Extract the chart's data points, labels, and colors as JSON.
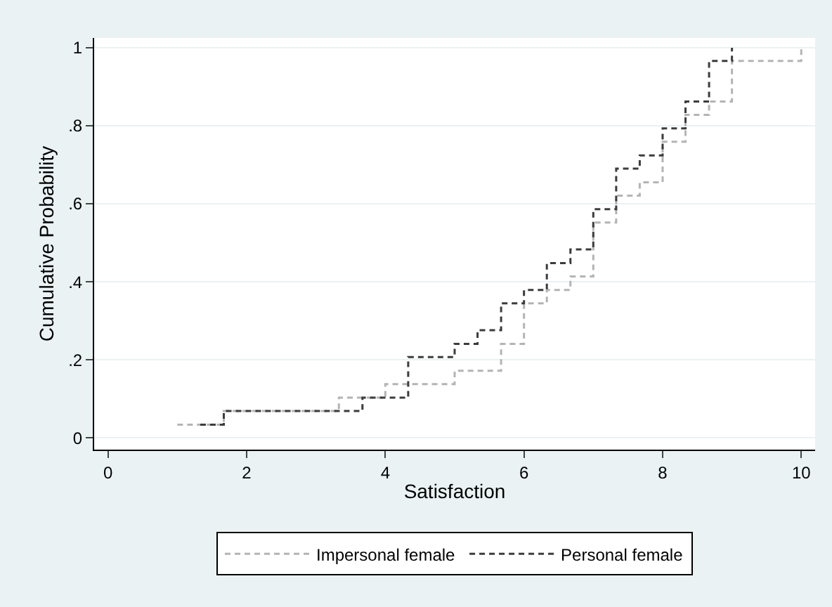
{
  "chart_data": {
    "type": "step",
    "xlabel": "Satisfaction",
    "ylabel": "Cumulative Probability",
    "xlim": [
      -0.2,
      10.2
    ],
    "xticks": [
      0,
      2,
      4,
      6,
      8,
      10
    ],
    "ylim": [
      -0.03,
      1.025
    ],
    "yticks": [
      0,
      {
        "value": 0.2,
        "label": ".2"
      },
      {
        "value": 0.4,
        "label": ".4"
      },
      {
        "value": 0.6,
        "label": ".6"
      },
      {
        "value": 0.8,
        "label": ".8"
      },
      1
    ],
    "grid": "y",
    "legend": "bottom",
    "line_style": "dashed",
    "marker": "none",
    "series": [
      {
        "name": "Impersonal female",
        "color": "#b4b4b4",
        "x": [
          1,
          1.67,
          3.33,
          4,
          5,
          5.67,
          6,
          6.33,
          6.67,
          7,
          7.33,
          7.67,
          8,
          8.33,
          8.67,
          9,
          10
        ],
        "values": [
          0.034,
          0.069,
          0.103,
          0.138,
          0.172,
          0.241,
          0.345,
          0.379,
          0.414,
          0.552,
          0.621,
          0.655,
          0.759,
          0.828,
          0.862,
          0.966,
          1
        ]
      },
      {
        "name": "Personal female",
        "color": "#3c3c3c",
        "x": [
          1.33,
          1.67,
          3.67,
          4.33,
          5,
          5.33,
          5.67,
          6,
          6.33,
          6.67,
          7,
          7.33,
          7.67,
          8,
          8.33,
          8.67,
          9
        ],
        "values": [
          0.034,
          0.069,
          0.103,
          0.207,
          0.241,
          0.276,
          0.345,
          0.379,
          0.448,
          0.483,
          0.586,
          0.69,
          0.724,
          0.793,
          0.862,
          0.966,
          1
        ]
      }
    ]
  }
}
